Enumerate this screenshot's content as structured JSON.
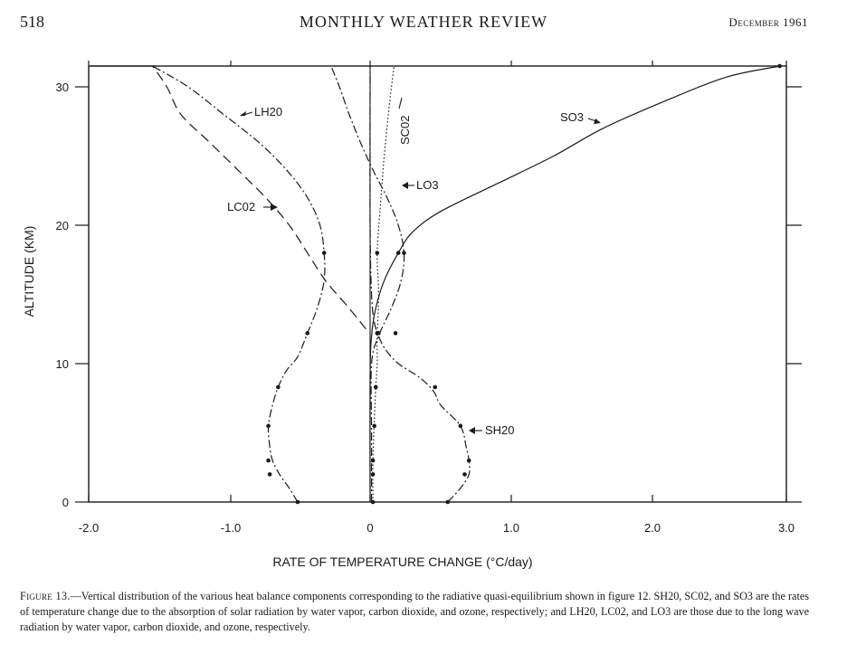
{
  "header": {
    "page_number": "518",
    "journal_title": "MONTHLY WEATHER REVIEW",
    "date": "December 1961"
  },
  "caption": {
    "label": "Figure 13.",
    "text": "—Vertical distribution of the various heat balance components corresponding to the radiative quasi-equilibrium shown in figure 12. SH20, SC02, and SO3 are the rates of temperature change due to the absorption of solar radiation by water vapor, carbon dioxide, and ozone, respectively; and LH20, LC02, and LO3 are those due to the long wave radiation by water vapor, carbon dioxide, and ozone, respectively."
  },
  "chart_data": {
    "type": "line",
    "xlabel": "RATE OF TEMPERATURE CHANGE (°C/day)",
    "ylabel": "ALTITUDE (KM)",
    "xlim": [
      -2.0,
      3.0
    ],
    "ylim": [
      0,
      31.5
    ],
    "xticks": [
      {
        "value": -2.0,
        "label": "-2.0"
      },
      {
        "value": -1.0,
        "label": "-1.0"
      },
      {
        "value": 0,
        "label": "0"
      },
      {
        "value": 1.0,
        "label": "1.0"
      },
      {
        "value": 2.0,
        "label": "2.0"
      },
      {
        "value": 3.0,
        "label": "3.0"
      }
    ],
    "yticks": [
      {
        "value": 0,
        "label": "0"
      },
      {
        "value": 10,
        "label": "10"
      },
      {
        "value": 20,
        "label": "20"
      },
      {
        "value": 30,
        "label": "30"
      }
    ],
    "grid": false,
    "series": [
      {
        "name": "SH20",
        "style": "dash-dot",
        "marker_style": "point",
        "points": [
          [
            0.55,
            0
          ],
          [
            0.64,
            1
          ],
          [
            0.7,
            2
          ],
          [
            0.7,
            3
          ],
          [
            0.68,
            4
          ],
          [
            0.64,
            5.5
          ],
          [
            0.5,
            7
          ],
          [
            0.45,
            8
          ],
          [
            0.35,
            9
          ],
          [
            0.2,
            10
          ],
          [
            0.11,
            11
          ],
          [
            0.06,
            12
          ],
          [
            0.03,
            13
          ],
          [
            0.01,
            15
          ],
          [
            0,
            20
          ],
          [
            0,
            31.5
          ]
        ],
        "markers": [
          [
            0.55,
            0
          ],
          [
            0.67,
            2
          ],
          [
            0.7,
            3
          ],
          [
            0.64,
            5.5
          ],
          [
            0.46,
            8.3
          ],
          [
            0.18,
            12.2
          ]
        ]
      },
      {
        "name": "SC02",
        "style": "dotted",
        "marker_style": "point",
        "points": [
          [
            0.02,
            0
          ],
          [
            0.02,
            3
          ],
          [
            0.03,
            6
          ],
          [
            0.04,
            8.3
          ],
          [
            0.05,
            10
          ],
          [
            0.05,
            12
          ],
          [
            0.06,
            15
          ],
          [
            0.05,
            18
          ],
          [
            0.07,
            21
          ],
          [
            0.1,
            25
          ],
          [
            0.14,
            29
          ],
          [
            0.17,
            31.5
          ]
        ],
        "markers": [
          [
            0.02,
            0
          ],
          [
            0.02,
            2
          ],
          [
            0.02,
            3
          ],
          [
            0.03,
            5.5
          ],
          [
            0.04,
            8.3
          ],
          [
            0.05,
            12.2
          ],
          [
            0.05,
            18
          ]
        ]
      },
      {
        "name": "SO3",
        "style": "solid",
        "marker_style": "point",
        "points": [
          [
            0,
            0
          ],
          [
            0,
            9
          ],
          [
            0.01,
            12
          ],
          [
            0.04,
            14
          ],
          [
            0.1,
            16
          ],
          [
            0.2,
            18
          ],
          [
            0.3,
            19.5
          ],
          [
            0.5,
            21
          ],
          [
            0.9,
            23
          ],
          [
            1.3,
            25
          ],
          [
            1.65,
            27
          ],
          [
            2.1,
            29
          ],
          [
            2.55,
            30.7
          ],
          [
            2.95,
            31.5
          ]
        ],
        "markers": [
          [
            0.2,
            18
          ],
          [
            2.95,
            31.5
          ]
        ]
      },
      {
        "name": "LH20",
        "style": "dash-dot",
        "marker_style": "point",
        "points": [
          [
            -0.52,
            0
          ],
          [
            -0.58,
            1
          ],
          [
            -0.65,
            2
          ],
          [
            -0.7,
            3
          ],
          [
            -0.72,
            4
          ],
          [
            -0.73,
            5.5
          ],
          [
            -0.7,
            7
          ],
          [
            -0.66,
            8.3
          ],
          [
            -0.6,
            9.5
          ],
          [
            -0.52,
            10.5
          ],
          [
            -0.45,
            12.2
          ],
          [
            -0.38,
            14
          ],
          [
            -0.33,
            16
          ],
          [
            -0.33,
            18
          ],
          [
            -0.36,
            20
          ],
          [
            -0.45,
            22
          ],
          [
            -0.6,
            24
          ],
          [
            -0.8,
            26
          ],
          [
            -1.05,
            28
          ],
          [
            -1.3,
            30
          ],
          [
            -1.55,
            31.5
          ]
        ],
        "markers": [
          [
            -0.52,
            0
          ],
          [
            -0.72,
            2
          ],
          [
            -0.73,
            3
          ],
          [
            -0.73,
            5.5
          ],
          [
            -0.66,
            8.3
          ],
          [
            -0.45,
            12.2
          ],
          [
            -0.33,
            18
          ]
        ]
      },
      {
        "name": "LC02",
        "style": "dashed",
        "marker_style": "none",
        "points": [
          [
            -0.03,
            12.5
          ],
          [
            -0.15,
            14
          ],
          [
            -0.32,
            16
          ],
          [
            -0.45,
            18
          ],
          [
            -0.58,
            20
          ],
          [
            -0.75,
            22
          ],
          [
            -0.95,
            24
          ],
          [
            -1.15,
            26
          ],
          [
            -1.35,
            28
          ],
          [
            -1.45,
            30
          ],
          [
            -1.55,
            31.5
          ]
        ],
        "markers": []
      },
      {
        "name": "LO3",
        "style": "dash-dot",
        "marker_style": "point",
        "points": [
          [
            0.01,
            0
          ],
          [
            0.01,
            5
          ],
          [
            0.01,
            10
          ],
          [
            0.06,
            12
          ],
          [
            0.15,
            14
          ],
          [
            0.22,
            16
          ],
          [
            0.24,
            18
          ],
          [
            0.2,
            20
          ],
          [
            0.12,
            22
          ],
          [
            0.02,
            24
          ],
          [
            -0.07,
            26
          ],
          [
            -0.15,
            28
          ],
          [
            -0.22,
            30
          ],
          [
            -0.28,
            31.5
          ]
        ],
        "markers": [
          [
            0.06,
            12.2
          ],
          [
            0.24,
            18
          ]
        ]
      }
    ],
    "annotations": [
      {
        "text": "LH20",
        "points_to": "LH20"
      },
      {
        "text": "LC02",
        "points_to": "LC02"
      },
      {
        "text": "SC02",
        "points_to": "SC02",
        "rotated": true
      },
      {
        "text": "LO3",
        "points_to": "LO3"
      },
      {
        "text": "SO3",
        "points_to": "SO3"
      },
      {
        "text": "SH20",
        "points_to": "SH20"
      }
    ]
  }
}
